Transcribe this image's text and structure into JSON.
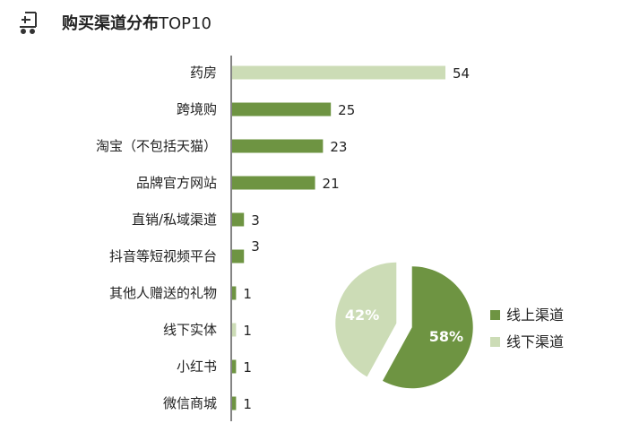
{
  "header": {
    "icon": "cart-icon",
    "title_bold": "购买渠道分布",
    "title_rest": "TOP10"
  },
  "colors": {
    "online": "#6e9442",
    "offline": "#ccdcb6",
    "axis": "#333333"
  },
  "chart_data": [
    {
      "type": "bar",
      "orientation": "horizontal",
      "title": "购买渠道分布TOP10",
      "categories": [
        "药房",
        "跨境购",
        "淘宝（不包括天猫）",
        "品牌官方网站",
        "直销/私域渠道",
        "抖音等短视频平台",
        "其他人赠送的礼物",
        "线下实体",
        "小红书",
        "微信商城"
      ],
      "values": [
        54,
        25,
        23,
        21,
        3,
        3,
        1,
        1,
        1,
        1
      ],
      "channel": [
        "offline",
        "online",
        "online",
        "online",
        "online",
        "online",
        "online",
        "offline",
        "online",
        "online"
      ],
      "xlim": [
        0,
        54
      ],
      "grid": false
    },
    {
      "type": "pie",
      "slices": [
        {
          "label": "线上渠道",
          "value": 58,
          "display": "58%",
          "color_key": "online"
        },
        {
          "label": "线下渠道",
          "value": 42,
          "display": "42%",
          "color_key": "offline"
        }
      ],
      "legend": [
        "线上渠道",
        "线下渠道"
      ],
      "legend_position": "right"
    }
  ]
}
